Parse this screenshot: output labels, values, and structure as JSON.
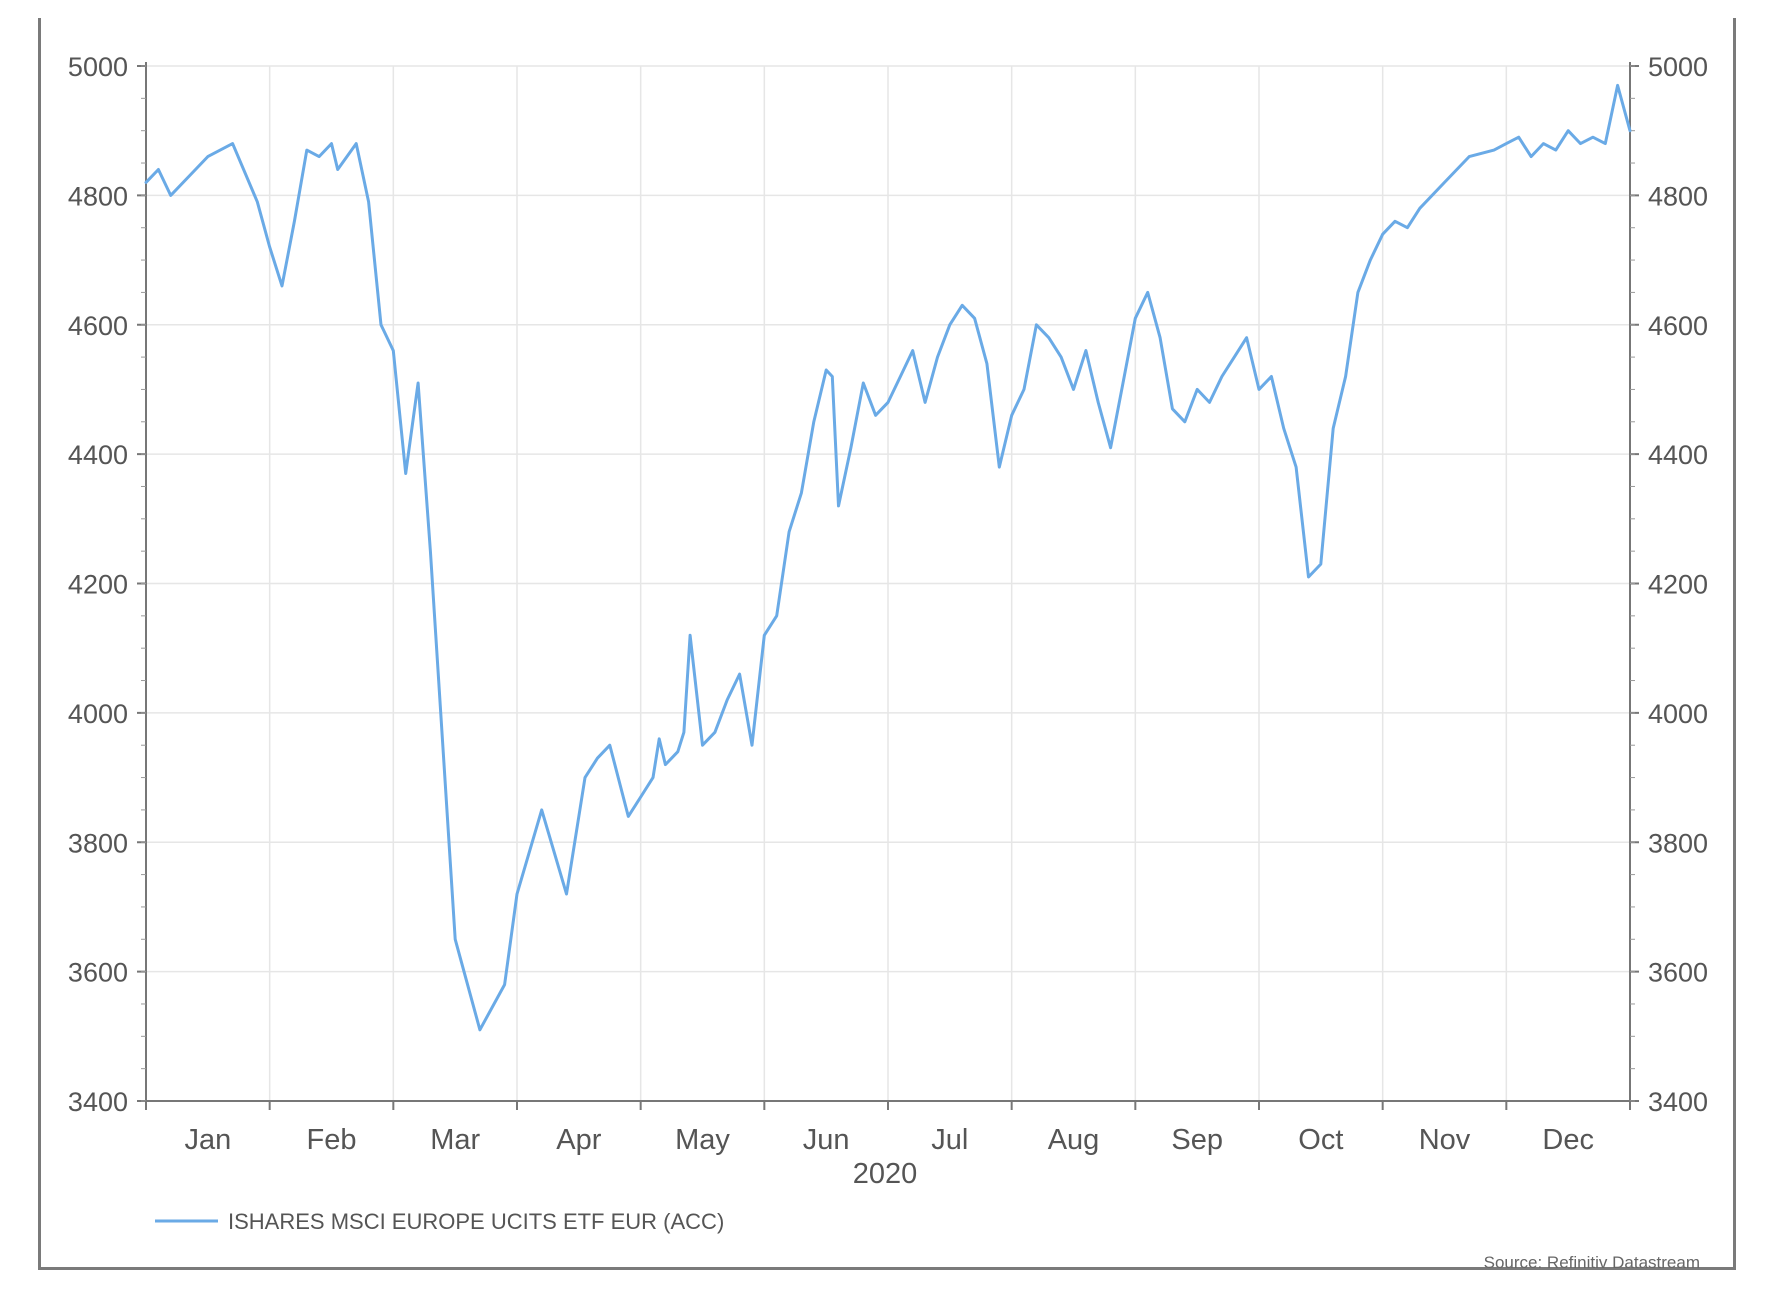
{
  "chart_data": {
    "type": "line",
    "title": "",
    "xlabel": "2020",
    "ylabel": "",
    "ylim": [
      3400,
      5000
    ],
    "yticks": [
      3400,
      3600,
      3800,
      4000,
      4200,
      4400,
      4600,
      4800,
      5000
    ],
    "ytick_labels": [
      "3400",
      "3600",
      "3800",
      "4000",
      "4200",
      "4400",
      "4600",
      "4800",
      "5000"
    ],
    "categories": [
      "Jan",
      "Feb",
      "Mar",
      "Apr",
      "May",
      "Jun",
      "Jul",
      "Aug",
      "Sep",
      "Oct",
      "Nov",
      "Dec"
    ],
    "secondary_axis": true,
    "grid": true,
    "legend_position": "bottom-left",
    "series": [
      {
        "name": "ISHARES MSCI EUROPE UCITS ETF EUR (ACC)",
        "color": "#6aaae6",
        "x": [
          0,
          0.1,
          0.2,
          0.35,
          0.5,
          0.7,
          0.9,
          1.0,
          1.1,
          1.2,
          1.3,
          1.4,
          1.5,
          1.55,
          1.7,
          1.8,
          1.9,
          2.0,
          2.1,
          2.2,
          2.3,
          2.5,
          2.7,
          2.9,
          3.0,
          3.2,
          3.4,
          3.55,
          3.65,
          3.75,
          3.9,
          4.0,
          4.1,
          4.15,
          4.2,
          4.25,
          4.3,
          4.35,
          4.4,
          4.5,
          4.6,
          4.7,
          4.8,
          4.9,
          5.0,
          5.1,
          5.2,
          5.3,
          5.4,
          5.5,
          5.55,
          5.6,
          5.7,
          5.8,
          5.9,
          6.0,
          6.1,
          6.2,
          6.3,
          6.4,
          6.5,
          6.6,
          6.7,
          6.8,
          6.9,
          7.0,
          7.1,
          7.2,
          7.3,
          7.4,
          7.5,
          7.6,
          7.7,
          7.8,
          7.9,
          8.0,
          8.1,
          8.2,
          8.3,
          8.4,
          8.5,
          8.6,
          8.7,
          8.8,
          8.9,
          9.0,
          9.1,
          9.2,
          9.3,
          9.4,
          9.5,
          9.6,
          9.7,
          9.8,
          9.9,
          10.0,
          10.1,
          10.2,
          10.3,
          10.5,
          10.7,
          10.9,
          11.0,
          11.1,
          11.2,
          11.3,
          11.4,
          11.5,
          11.6,
          11.7,
          11.8,
          11.9,
          12.0
        ],
        "values": [
          4820,
          4840,
          4800,
          4830,
          4860,
          4880,
          4790,
          4720,
          4660,
          4760,
          4870,
          4860,
          4880,
          4840,
          4880,
          4790,
          4600,
          4560,
          4370,
          4510,
          4250,
          3650,
          3510,
          3580,
          3720,
          3850,
          3720,
          3900,
          3930,
          3950,
          3840,
          3870,
          3900,
          3960,
          3920,
          3930,
          3940,
          3970,
          4120,
          3950,
          3970,
          4020,
          4060,
          3950,
          4120,
          4150,
          4280,
          4340,
          4450,
          4530,
          4520,
          4320,
          4410,
          4510,
          4460,
          4480,
          4520,
          4560,
          4480,
          4550,
          4600,
          4630,
          4610,
          4540,
          4380,
          4460,
          4500,
          4600,
          4580,
          4550,
          4500,
          4560,
          4480,
          4410,
          4510,
          4610,
          4650,
          4580,
          4470,
          4450,
          4500,
          4480,
          4520,
          4550,
          4580,
          4500,
          4520,
          4440,
          4380,
          4210,
          4230,
          4440,
          4520,
          4650,
          4700,
          4740,
          4760,
          4750,
          4780,
          4820,
          4860,
          4870,
          4880,
          4890,
          4860,
          4880,
          4870,
          4900,
          4880,
          4890,
          4880,
          4970,
          4900
        ]
      }
    ],
    "source": "Source: Refinitiv Datastream"
  }
}
